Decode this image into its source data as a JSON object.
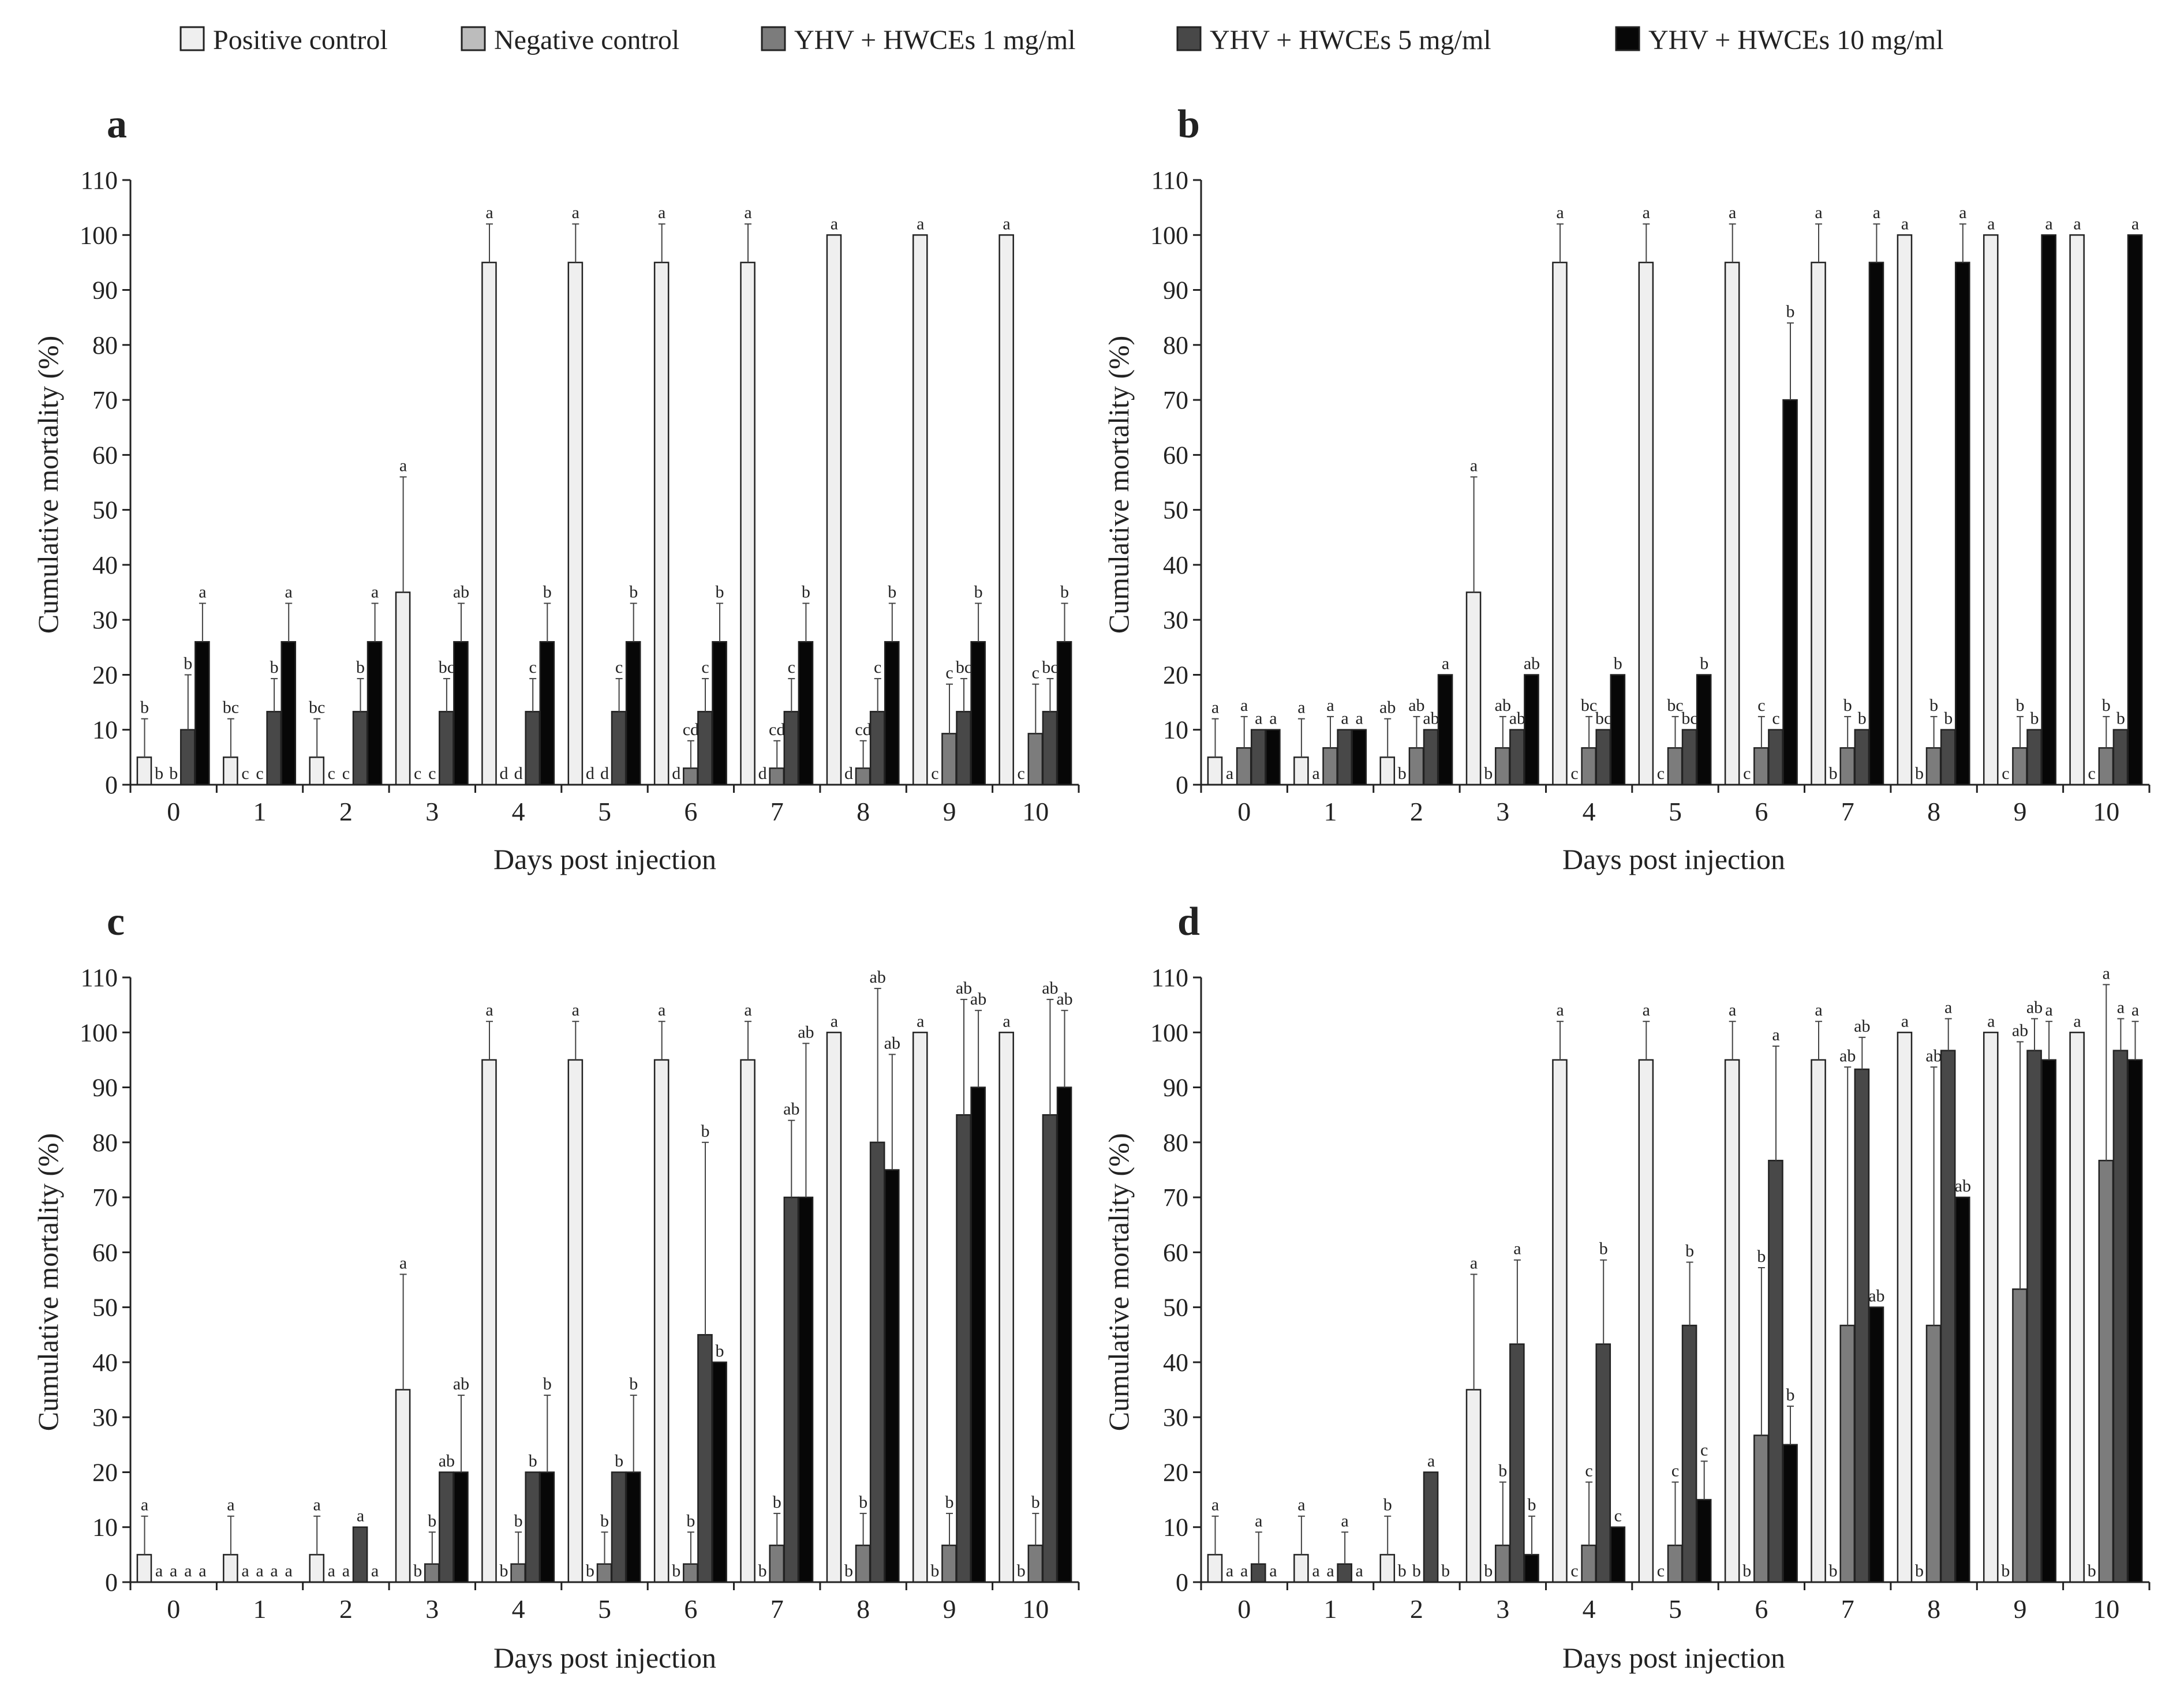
{
  "legend": [
    {
      "label": "Positive control",
      "color": "#efefef"
    },
    {
      "label": "Negative control",
      "color": "#bcbcbc"
    },
    {
      "label": "YHV + HWCEs 1 mg/ml",
      "color": "#7c7c7c"
    },
    {
      "label": "YHV + HWCEs 5 mg/ml",
      "color": "#484848"
    },
    {
      "label": "YHV + HWCEs 10 mg/ml",
      "color": "#070707"
    }
  ],
  "chart_data": [
    {
      "panel": "a",
      "type": "bar",
      "xlabel": "Days post injection",
      "ylabel": "Cumulative mortality (%)",
      "ylim": [
        0,
        110
      ],
      "yticks": [
        "0",
        "10",
        "20",
        "30",
        "40",
        "50",
        "60",
        "70",
        "80",
        "90",
        "100",
        "110"
      ],
      "categories": [
        "0",
        "1",
        "2",
        "3",
        "4",
        "5",
        "6",
        "7",
        "8",
        "9",
        "10"
      ],
      "series": [
        {
          "name": "Positive control",
          "values": [
            5,
            5,
            5,
            35,
            95,
            95,
            95,
            95,
            100,
            100,
            100
          ],
          "errors": [
            7,
            7,
            7,
            21,
            7,
            7,
            7,
            7,
            0,
            0,
            0
          ],
          "letters": [
            "b",
            "bc",
            "bc",
            "a",
            "a",
            "a",
            "a",
            "a",
            "a",
            "a",
            "a"
          ]
        },
        {
          "name": "Negative control",
          "values": [
            0,
            0,
            0,
            0,
            0,
            0,
            0,
            0,
            0,
            0,
            0
          ],
          "errors": [
            0,
            0,
            0,
            0,
            0,
            0,
            0,
            0,
            0,
            0,
            0
          ],
          "letters": [
            "b",
            "c",
            "c",
            "c",
            "d",
            "d",
            "d",
            "d",
            "d",
            "c",
            "c"
          ]
        },
        {
          "name": "YHV + HWCEs 1 mg/ml",
          "values": [
            0,
            0,
            0,
            0,
            0,
            0,
            3,
            3,
            3,
            9.3,
            9.3
          ],
          "errors": [
            0,
            0,
            0,
            0,
            0,
            0,
            5,
            5,
            5,
            9,
            9
          ],
          "letters": [
            "b",
            "c",
            "c",
            "c",
            "d",
            "d",
            "cd",
            "cd",
            "cd",
            "c",
            "c"
          ]
        },
        {
          "name": "YHV + HWCEs 5 mg/ml",
          "values": [
            10,
            13.3,
            13.3,
            13.3,
            13.3,
            13.3,
            13.3,
            13.3,
            13.3,
            13.3,
            13.3
          ],
          "errors": [
            10,
            6,
            6,
            6,
            6,
            6,
            6,
            6,
            6,
            6,
            6
          ],
          "letters": [
            "b",
            "b",
            "b",
            "bc",
            "c",
            "c",
            "c",
            "c",
            "c",
            "bc",
            "bc"
          ]
        },
        {
          "name": "YHV + HWCEs 10 mg/ml",
          "values": [
            26,
            26,
            26,
            26,
            26,
            26,
            26,
            26,
            26,
            26,
            26
          ],
          "errors": [
            7,
            7,
            7,
            7,
            7,
            7,
            7,
            7,
            7,
            7,
            7
          ],
          "letters": [
            "a",
            "a",
            "a",
            "ab",
            "b",
            "b",
            "b",
            "b",
            "b",
            "b",
            "b"
          ]
        }
      ]
    },
    {
      "panel": "b",
      "type": "bar",
      "xlabel": "Days post injection",
      "ylabel": "Cumulative mortality (%)",
      "ylim": [
        0,
        110
      ],
      "yticks": [
        "0",
        "10",
        "20",
        "30",
        "40",
        "50",
        "60",
        "70",
        "80",
        "90",
        "100",
        "110"
      ],
      "categories": [
        "0",
        "1",
        "2",
        "3",
        "4",
        "5",
        "6",
        "7",
        "8",
        "9",
        "10"
      ],
      "series": [
        {
          "name": "Positive control",
          "values": [
            5,
            5,
            5,
            35,
            95,
            95,
            95,
            95,
            100,
            100,
            100
          ],
          "errors": [
            7,
            7,
            7,
            21,
            7,
            7,
            7,
            7,
            0,
            0,
            0
          ],
          "letters": [
            "a",
            "a",
            "ab",
            "a",
            "a",
            "a",
            "a",
            "a",
            "a",
            "a",
            "a"
          ]
        },
        {
          "name": "Negative control",
          "values": [
            0,
            0,
            0,
            0,
            0,
            0,
            0,
            0,
            0,
            0,
            0
          ],
          "errors": [
            0,
            0,
            0,
            0,
            0,
            0,
            0,
            0,
            0,
            0,
            0
          ],
          "letters": [
            "a",
            "a",
            "b",
            "b",
            "c",
            "c",
            "c",
            "b",
            "b",
            "c",
            "c"
          ]
        },
        {
          "name": "YHV + HWCEs 1 mg/ml",
          "values": [
            6.7,
            6.7,
            6.7,
            6.7,
            6.7,
            6.7,
            6.7,
            6.7,
            6.7,
            6.7,
            6.7
          ],
          "errors": [
            5.7,
            5.7,
            5.7,
            5.7,
            5.7,
            5.7,
            5.7,
            5.7,
            5.7,
            5.7,
            5.7
          ],
          "letters": [
            "a",
            "a",
            "ab",
            "ab",
            "bc",
            "bc",
            "c",
            "b",
            "b",
            "b",
            "b"
          ]
        },
        {
          "name": "YHV + HWCEs 5 mg/ml",
          "values": [
            10,
            10,
            10,
            10,
            10,
            10,
            10,
            10,
            10,
            10,
            10
          ],
          "errors": [
            0,
            0,
            0,
            0,
            0,
            0,
            0,
            0,
            0,
            0,
            0
          ],
          "letters": [
            "a",
            "a",
            "ab",
            "ab",
            "bc",
            "bc",
            "c",
            "b",
            "b",
            "b",
            "b"
          ]
        },
        {
          "name": "YHV + HWCEs 10 mg/ml",
          "values": [
            10,
            10,
            20,
            20,
            20,
            20,
            70,
            95,
            95,
            100,
            100
          ],
          "errors": [
            0,
            0,
            0,
            0,
            0,
            0,
            14,
            7,
            7,
            0,
            0
          ],
          "letters": [
            "a",
            "a",
            "a",
            "ab",
            "b",
            "b",
            "b",
            "a",
            "a",
            "a",
            "a"
          ]
        }
      ]
    },
    {
      "panel": "c",
      "type": "bar",
      "xlabel": "Days post injection",
      "ylabel": "Cumulative mortality (%)",
      "ylim": [
        0,
        110
      ],
      "yticks": [
        "0",
        "10",
        "20",
        "30",
        "40",
        "50",
        "60",
        "70",
        "80",
        "90",
        "100",
        "110"
      ],
      "categories": [
        "0",
        "1",
        "2",
        "3",
        "4",
        "5",
        "6",
        "7",
        "8",
        "9",
        "10"
      ],
      "series": [
        {
          "name": "Positive control",
          "values": [
            5,
            5,
            5,
            35,
            95,
            95,
            95,
            95,
            100,
            100,
            100
          ],
          "errors": [
            7,
            7,
            7,
            21,
            7,
            7,
            7,
            7,
            0,
            0,
            0
          ],
          "letters": [
            "a",
            "a",
            "a",
            "a",
            "a",
            "a",
            "a",
            "a",
            "a",
            "a",
            "a"
          ]
        },
        {
          "name": "Negative control",
          "values": [
            0,
            0,
            0,
            0,
            0,
            0,
            0,
            0,
            0,
            0,
            0
          ],
          "errors": [
            0,
            0,
            0,
            0,
            0,
            0,
            0,
            0,
            0,
            0,
            0
          ],
          "letters": [
            "a",
            "a",
            "a",
            "b",
            "b",
            "b",
            "b",
            "b",
            "b",
            "b",
            "b"
          ]
        },
        {
          "name": "YHV + HWCEs 1 mg/ml",
          "values": [
            0,
            0,
            0,
            3.3,
            3.3,
            3.3,
            3.3,
            6.7,
            6.7,
            6.7,
            6.7
          ],
          "errors": [
            0,
            0,
            0,
            5.8,
            5.8,
            5.8,
            5.8,
            5.8,
            5.8,
            5.8,
            5.8
          ],
          "letters": [
            "a",
            "a",
            "a",
            "b",
            "b",
            "b",
            "b",
            "b",
            "b",
            "b",
            "b"
          ]
        },
        {
          "name": "YHV + HWCEs 5 mg/ml",
          "values": [
            0,
            0,
            10,
            20,
            20,
            20,
            45,
            70,
            80,
            85,
            85
          ],
          "errors": [
            0,
            0,
            0,
            0,
            0,
            0,
            35,
            14,
            28,
            21,
            21
          ],
          "letters": [
            "a",
            "a",
            "a",
            "ab",
            "b",
            "b",
            "b",
            "ab",
            "ab",
            "ab",
            "ab"
          ]
        },
        {
          "name": "YHV + HWCEs 10 mg/ml",
          "values": [
            0,
            0,
            0,
            20,
            20,
            20,
            40,
            70,
            75,
            90,
            90
          ],
          "errors": [
            0,
            0,
            0,
            14,
            14,
            14,
            0,
            28,
            21,
            14,
            14
          ],
          "letters": [
            "a",
            "a",
            "a",
            "ab",
            "b",
            "b",
            "b",
            "ab",
            "ab",
            "ab",
            "ab"
          ]
        }
      ]
    },
    {
      "panel": "d",
      "type": "bar",
      "xlabel": "Days post injection",
      "ylabel": "Cumulative mortality (%)",
      "ylim": [
        0,
        110
      ],
      "yticks": [
        "0",
        "10",
        "20",
        "30",
        "40",
        "50",
        "60",
        "70",
        "80",
        "90",
        "100",
        "110"
      ],
      "categories": [
        "0",
        "1",
        "2",
        "3",
        "4",
        "5",
        "6",
        "7",
        "8",
        "9",
        "10"
      ],
      "series": [
        {
          "name": "Positive control",
          "values": [
            5,
            5,
            5,
            35,
            95,
            95,
            95,
            95,
            100,
            100,
            100
          ],
          "errors": [
            7,
            7,
            7,
            21,
            7,
            7,
            7,
            7,
            0,
            0,
            0
          ],
          "letters": [
            "a",
            "a",
            "b",
            "a",
            "a",
            "a",
            "a",
            "a",
            "a",
            "a",
            "a"
          ]
        },
        {
          "name": "Negative control",
          "values": [
            0,
            0,
            0,
            0,
            0,
            0,
            0,
            0,
            0,
            0,
            0
          ],
          "errors": [
            0,
            0,
            0,
            0,
            0,
            0,
            0,
            0,
            0,
            0,
            0
          ],
          "letters": [
            "a",
            "a",
            "b",
            "b",
            "c",
            "c",
            "b",
            "b",
            "b",
            "b",
            "b"
          ]
        },
        {
          "name": "YHV + HWCEs 1 mg/ml",
          "values": [
            0,
            0,
            0,
            6.7,
            6.7,
            6.7,
            26.7,
            46.7,
            46.7,
            53.3,
            76.7
          ],
          "errors": [
            0,
            0,
            0,
            11.5,
            11.5,
            11.5,
            30.5,
            47,
            47,
            45,
            32
          ],
          "letters": [
            "a",
            "a",
            "b",
            "b",
            "c",
            "c",
            "b",
            "ab",
            "ab",
            "ab",
            "a"
          ]
        },
        {
          "name": "YHV + HWCEs 5 mg/ml",
          "values": [
            3.3,
            3.3,
            20,
            43.3,
            43.3,
            46.7,
            76.7,
            93.3,
            96.7,
            96.7,
            96.7
          ],
          "errors": [
            5.8,
            5.8,
            0,
            15.3,
            15.3,
            11.5,
            20.8,
            5.8,
            5.8,
            5.8,
            5.8
          ],
          "letters": [
            "a",
            "a",
            "a",
            "a",
            "b",
            "b",
            "a",
            "ab",
            "a",
            "ab",
            "a"
          ]
        },
        {
          "name": "YHV + HWCEs 10 mg/ml",
          "values": [
            0,
            0,
            0,
            5,
            10,
            15,
            25,
            50,
            70,
            95,
            95
          ],
          "errors": [
            0,
            0,
            0,
            7,
            0,
            7,
            7,
            0,
            0,
            7,
            7
          ],
          "letters": [
            "a",
            "a",
            "b",
            "b",
            "c",
            "c",
            "b",
            "ab",
            "ab",
            "a",
            "a"
          ]
        }
      ]
    }
  ]
}
